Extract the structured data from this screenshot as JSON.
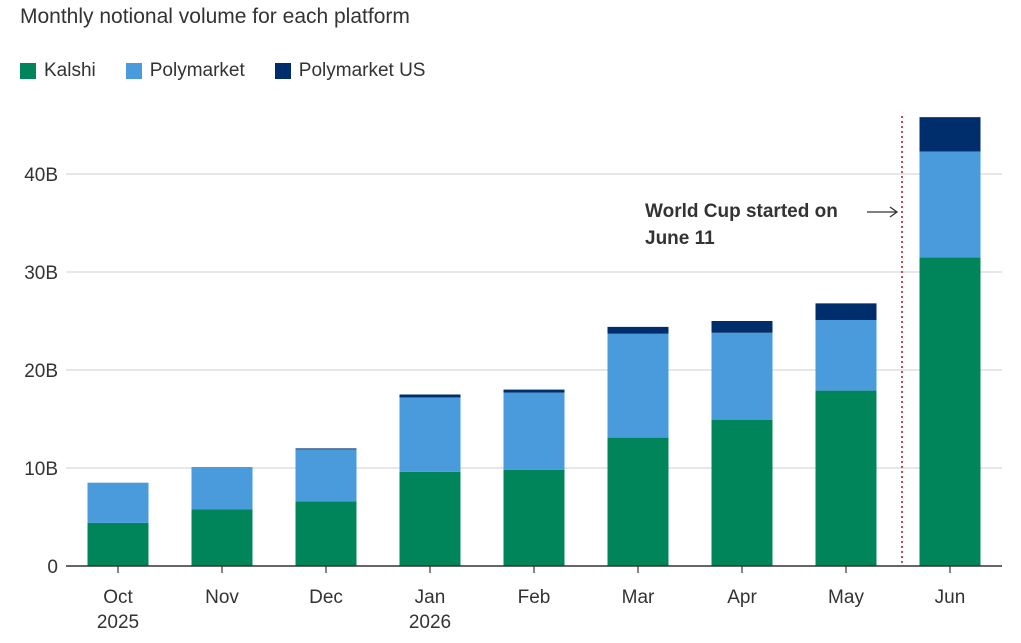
{
  "chart_data": {
    "type": "bar",
    "stacked": true,
    "title": "Monthly notional volume for each platform",
    "categories": [
      [
        "Oct",
        "2025"
      ],
      [
        "Nov"
      ],
      [
        "Dec"
      ],
      [
        "Jan",
        "2026"
      ],
      [
        "Feb"
      ],
      [
        "Mar"
      ],
      [
        "Apr"
      ],
      [
        "May"
      ],
      [
        "Jun"
      ]
    ],
    "series": [
      {
        "name": "Kalshi",
        "color": "#00845a",
        "values": [
          4.4,
          5.8,
          6.6,
          9.6,
          9.8,
          13.1,
          14.9,
          17.9,
          31.5
        ]
      },
      {
        "name": "Polymarket",
        "color": "#4a9bdb",
        "values": [
          4.1,
          4.3,
          5.3,
          7.6,
          7.9,
          10.6,
          8.9,
          7.2,
          10.8
        ]
      },
      {
        "name": "Polymarket US",
        "color": "#002e6d",
        "values": [
          0.0,
          0.0,
          0.1,
          0.3,
          0.3,
          0.7,
          1.2,
          1.7,
          3.5
        ]
      }
    ],
    "yticks": [
      "0",
      "10B",
      "20B",
      "30B",
      "40B"
    ],
    "ytick_values": [
      0,
      10,
      20,
      30,
      40
    ],
    "ylim": [
      0,
      46
    ],
    "grid": true,
    "legend_position": "top-left",
    "annotation": {
      "lines": [
        "World Cup started on",
        "June 11"
      ],
      "marker_between": [
        "May",
        "Jun"
      ]
    }
  }
}
